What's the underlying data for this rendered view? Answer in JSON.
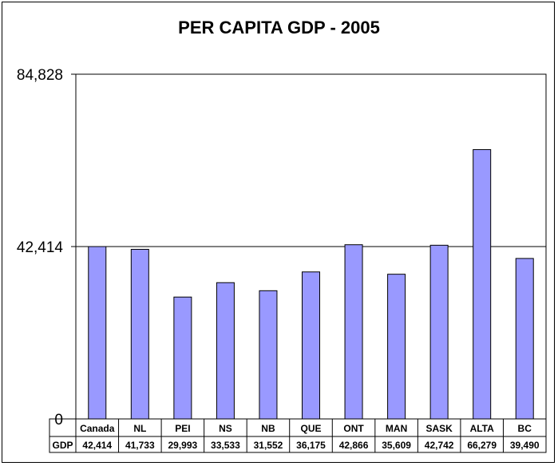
{
  "chart_data": {
    "type": "bar",
    "title": "PER CAPITA GDP - 2005",
    "xlabel": "",
    "ylabel": "",
    "ylim": [
      0,
      84828
    ],
    "yticks": [
      "0",
      "42,414",
      "84,828"
    ],
    "ytick_values": [
      0,
      42414,
      84828
    ],
    "categories": [
      "Canada",
      "NL",
      "PEI",
      "NS",
      "NB",
      "QUE",
      "ONT",
      "MAN",
      "SASK",
      "ALTA",
      "BC"
    ],
    "series": [
      {
        "name": "GDP",
        "values": [
          42414,
          41733,
          29993,
          33533,
          31552,
          36175,
          42866,
          35609,
          42742,
          66279,
          39490
        ],
        "labels": [
          "42,414",
          "41,733",
          "29,993",
          "33,533",
          "31,552",
          "36,175",
          "42,866",
          "35,609",
          "42,742",
          "66,279",
          "39,490"
        ]
      }
    ],
    "bar_color": "#9999ff",
    "grid": "horizontal",
    "data_table": true
  }
}
